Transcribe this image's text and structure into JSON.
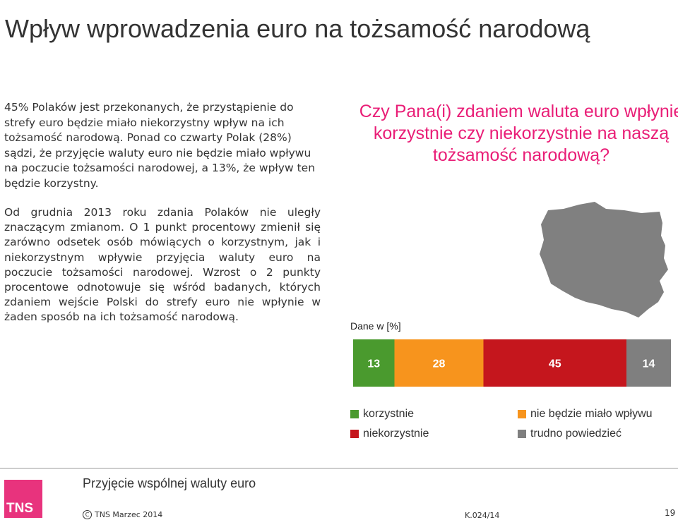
{
  "slide": {
    "title": "Wpływ wprowadzenia euro na tożsamość narodową",
    "paragraph1": "45% Polaków jest przekonanych, że przystąpienie do strefy euro będzie miało niekorzystny wpływ na ich tożsamość narodową. Ponad co czwarty Polak (28%) sądzi, że przyjęcie waluty euro nie będzie miało wpływu na poczucie tożsamości narodowej, a 13%, że wpływ ten będzie korzystny.",
    "paragraph2": "Od grudnia 2013 roku zdania Polaków nie uległy znaczącym zmianom. O 1 punkt procentowy zmienił się zarówno odsetek osób mówiących o korzystnym, jak i niekorzystnym wpływie przyjęcia waluty euro na poczucie tożsamości narodowej. Wzrost o 2 punkty procentowe odnotowuje się wśród badanych, których zdaniem wejście Polski do strefy euro nie wpłynie w żaden sposób na ich tożsamość narodową.",
    "question": "Czy Pana(i) zdaniem waluta euro wpłynie korzystnie czy niekorzystnie na naszą tożsamość narodową?",
    "accent_color": "#e91e77",
    "map_icon": "poland-map-icon"
  },
  "chart_data": {
    "type": "bar",
    "stacked": true,
    "orientation": "horizontal",
    "unit_label": "Dane w [%]",
    "categories": [
      ""
    ],
    "series": [
      {
        "name": "korzystnie",
        "values": [
          13
        ],
        "color": "#4a9a2e"
      },
      {
        "name": "nie będzie miało wpływu",
        "values": [
          28
        ],
        "color": "#f7941d"
      },
      {
        "name": "niekorzystnie",
        "values": [
          45
        ],
        "color": "#c5161d"
      },
      {
        "name": "trudno powiedzieć",
        "values": [
          14
        ],
        "color": "#7f7f7f"
      }
    ],
    "xlim": [
      0,
      100
    ],
    "grid": false,
    "legend_position": "bottom"
  },
  "footer": {
    "title": "Przyjęcie wspólnej waluty euro",
    "logo_text": "TNS",
    "logo_color": "#e8337d",
    "copyright": "TNS Marzec 2014",
    "code": "K.024/14",
    "page_number": "19"
  }
}
